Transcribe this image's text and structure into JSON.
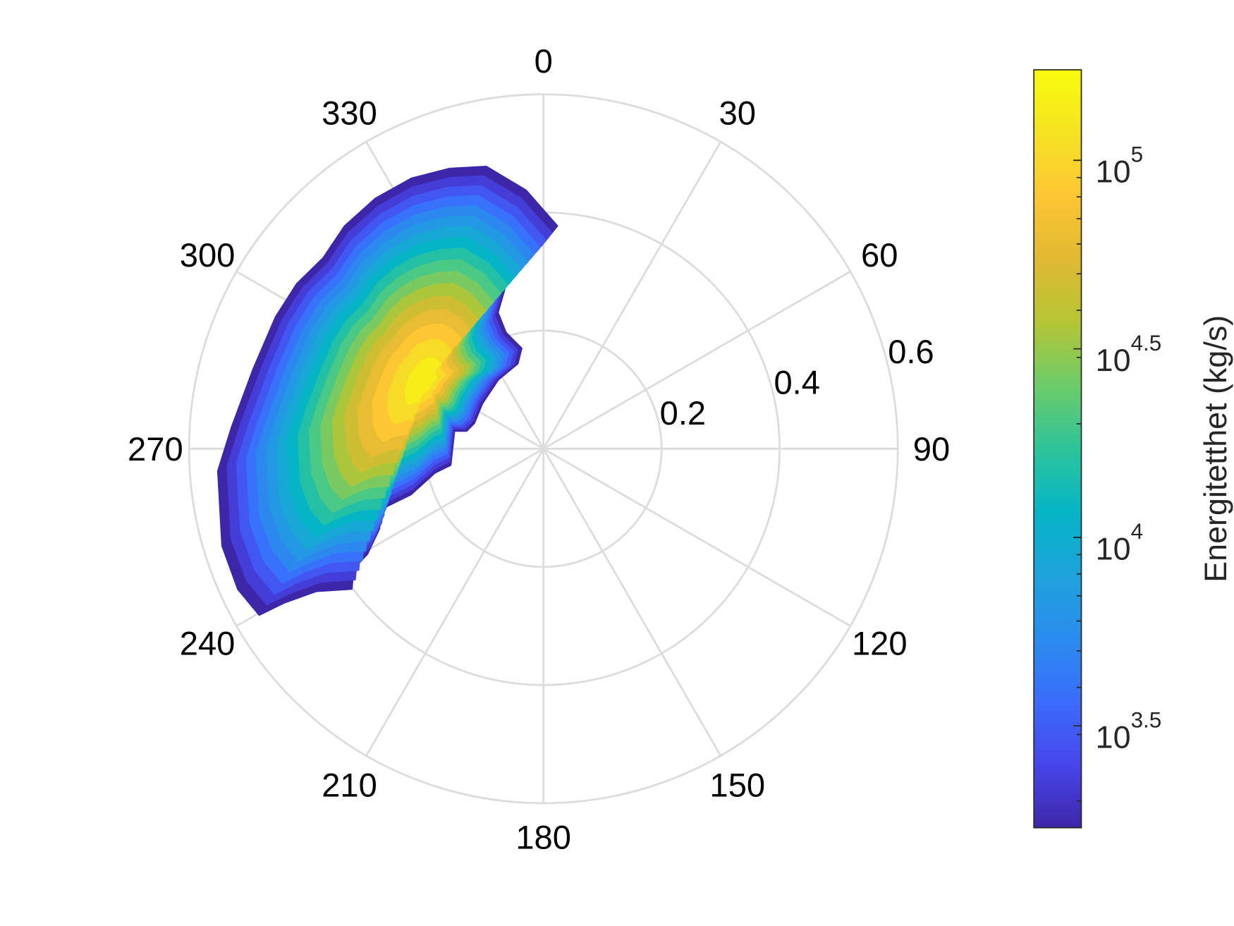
{
  "chart_data": {
    "type": "polar-contour",
    "title": "",
    "theta_zero": "top",
    "theta_direction": "clockwise",
    "theta_ticks": [
      0,
      30,
      60,
      90,
      120,
      150,
      180,
      210,
      240,
      270,
      300,
      330
    ],
    "theta_tick_labels": [
      "0",
      "30",
      "60",
      "90",
      "120",
      "150",
      "180",
      "210",
      "240",
      "270",
      "300",
      "330"
    ],
    "r_ticks": [
      0.2,
      0.4,
      0.6
    ],
    "r_tick_labels": [
      "0.2",
      "0.4",
      "0.6"
    ],
    "rlim": [
      0,
      0.6
    ],
    "grid": true,
    "colorbar": {
      "label": "Energitetthet  (kg/s)",
      "scale": "log",
      "clim_log10": [
        3.23,
        5.24
      ],
      "ticks": [
        {
          "log10": 3.5,
          "base": "10",
          "exp": "3.5"
        },
        {
          "log10": 4.0,
          "base": "10",
          "exp": "4"
        },
        {
          "log10": 4.5,
          "base": "10",
          "exp": "4.5"
        },
        {
          "log10": 5.0,
          "base": "10",
          "exp": "5"
        }
      ],
      "colormap": [
        "#3e26a8",
        "#4746eb",
        "#3b6cfc",
        "#2a8ced",
        "#1fa3dc",
        "#05b5c6",
        "#2ec49a",
        "#6dcc6a",
        "#b5c535",
        "#e0b932",
        "#fdc634",
        "#f5e323",
        "#f9fb0e"
      ]
    },
    "contour_levels_log10": [
      3.23,
      3.35,
      3.47,
      3.59,
      3.71,
      3.83,
      3.95,
      4.07,
      4.19,
      4.31,
      4.43,
      4.55,
      4.67,
      4.79,
      4.91,
      5.03,
      5.15
    ],
    "outer_boundary_theta_r": [
      [
        3.7,
        0.378
      ],
      [
        356.2,
        0.439
      ],
      [
        348.6,
        0.488
      ],
      [
        341.5,
        0.501
      ],
      [
        334.0,
        0.51
      ],
      [
        326.2,
        0.511
      ],
      [
        318.2,
        0.506
      ],
      [
        310.9,
        0.494
      ],
      [
        303.8,
        0.503
      ],
      [
        296.2,
        0.506
      ],
      [
        285.5,
        0.51
      ],
      [
        273.9,
        0.53
      ],
      [
        266.1,
        0.553
      ],
      [
        253.2,
        0.569
      ],
      [
        245.3,
        0.57
      ],
      [
        239.6,
        0.558
      ],
      [
        239.2,
        0.51
      ],
      [
        237.8,
        0.454
      ],
      [
        233.7,
        0.402
      ],
      [
        237.7,
        0.379
      ],
      [
        239.0,
        0.347
      ],
      [
        244.0,
        0.308
      ],
      [
        249.4,
        0.296
      ],
      [
        250.8,
        0.237
      ],
      [
        257.3,
        0.188
      ],
      [
        259.8,
        0.159
      ],
      [
        281.1,
        0.153
      ],
      [
        282.8,
        0.133
      ],
      [
        290.2,
        0.124
      ],
      [
        306.5,
        0.128
      ],
      [
        326.8,
        0.139
      ],
      [
        343.4,
        0.15
      ],
      [
        348.0,
        0.174
      ],
      [
        342.3,
        0.207
      ],
      [
        341.7,
        0.243
      ],
      [
        347.2,
        0.284
      ],
      [
        353.5,
        0.319
      ],
      [
        359.6,
        0.344
      ]
    ],
    "peak_theta_r": [
      300.6,
      0.229
    ],
    "peak_log10": 5.22
  }
}
